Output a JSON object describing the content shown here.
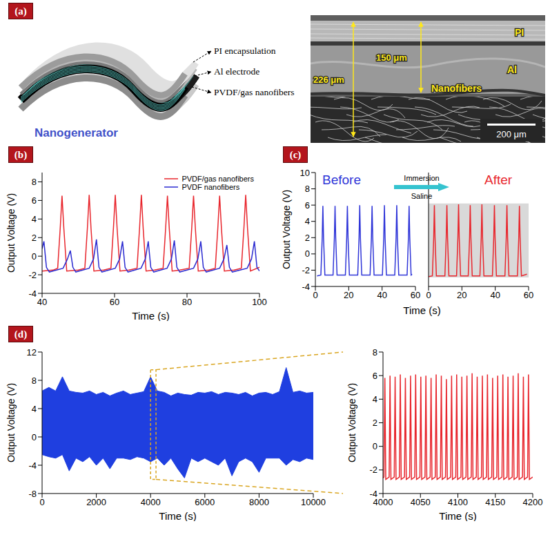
{
  "diagram": {
    "panel_label": "(a)",
    "schematic": {
      "title": "Nanogenerator",
      "labels": [
        "PI encapsulation",
        "Al electrode",
        "PVDF/gas nanofibers"
      ]
    },
    "sem": {
      "layer_labels": [
        "PI",
        "Al",
        "Nanofibers"
      ],
      "dimensions": [
        "226 μm",
        "150 μm"
      ],
      "scale_bar": "200 μm"
    }
  },
  "chart_data": [
    {
      "type": "line",
      "title": "(b)",
      "x_label": "Time (s)",
      "y_label": "Output Voltage (V)",
      "xlim": [
        40,
        100
      ],
      "xticks": [
        40,
        60,
        80,
        100
      ],
      "ylim": [
        -4,
        9
      ],
      "yticks": [
        -4,
        -2,
        0,
        2,
        4,
        6,
        8
      ],
      "legend": "upper right",
      "series": [
        {
          "name": "PVDF/gas nanofibers",
          "color": "#e8262d",
          "x": [
            40,
            43,
            44.3,
            45,
            45.5,
            46,
            46.8,
            50,
            51.8,
            52.5,
            53,
            53.5,
            54.3,
            57,
            59,
            59.7,
            60.2,
            60.7,
            61.5,
            64,
            66.2,
            66.9,
            67.4,
            67.9,
            68.7,
            71,
            73.4,
            74.1,
            74.6,
            75.1,
            75.9,
            78,
            80.6,
            81.3,
            81.8,
            82.3,
            83.1,
            86,
            87.8,
            88.5,
            89,
            89.5,
            90.3,
            93,
            95,
            95.7,
            96.2,
            96.7,
            97.5,
            100
          ],
          "values": [
            -1.6,
            -1.5,
            -1.3,
            3.0,
            6.5,
            3.0,
            -1.6,
            -1.5,
            -1.3,
            3.0,
            6.6,
            3.0,
            -1.6,
            -1.5,
            -1.3,
            3.1,
            6.6,
            3.0,
            -1.6,
            -1.5,
            -1.3,
            3.0,
            6.6,
            3.0,
            -1.6,
            -1.5,
            -1.3,
            3.0,
            6.5,
            3.0,
            -1.6,
            -1.5,
            -1.3,
            3.0,
            6.5,
            3.0,
            -1.6,
            -1.5,
            -1.3,
            3.0,
            6.5,
            3.0,
            -1.6,
            -1.5,
            -1.3,
            3.0,
            6.6,
            3.0,
            -1.6,
            -1.2
          ]
        },
        {
          "name": "PVDF nanofibers",
          "color": "#2b2bd0",
          "x": [
            40,
            40.5,
            41.2,
            42,
            45.8,
            47,
            47.8,
            48.5,
            49.3,
            53,
            54.2,
            55,
            55.7,
            56.5,
            60.2,
            61.4,
            62.2,
            62.9,
            63.7,
            67.3,
            68.5,
            69.3,
            70,
            70.8,
            74.5,
            75.7,
            76.5,
            77.2,
            78,
            81.8,
            83,
            83.8,
            84.5,
            85.3,
            89,
            90.2,
            91,
            91.7,
            92.5,
            96.6,
            97.8,
            98.6,
            99.3,
            100
          ],
          "values": [
            0.8,
            1.6,
            -1.2,
            -1.7,
            -1.3,
            -0.3,
            0.6,
            -1.2,
            -1.7,
            -1.3,
            -0.3,
            1.8,
            -1.2,
            -1.7,
            -1.3,
            -0.3,
            1.6,
            -1.2,
            -1.7,
            -1.3,
            -0.3,
            1.6,
            -1.2,
            -1.7,
            -1.3,
            -0.3,
            1.7,
            -1.2,
            -1.7,
            -1.3,
            -0.3,
            1.6,
            -1.2,
            -1.7,
            -1.3,
            -0.3,
            1.2,
            -1.2,
            -1.7,
            -1.3,
            -0.3,
            1.6,
            -1.2,
            -1.6
          ]
        }
      ]
    },
    {
      "type": "line",
      "title": "(c)",
      "x_label": "Time (s)",
      "y_label": "Output Voltage (V)",
      "xlim": [
        0,
        60
      ],
      "xticks": [
        0,
        20,
        40,
        60
      ],
      "ylim": [
        -4,
        10
      ],
      "yticks": [
        -4,
        -2,
        0,
        2,
        4,
        6,
        8,
        10
      ],
      "annotations": [
        "Immersion",
        "Saline"
      ],
      "shaded_band": [
        -2.9,
        6.2
      ],
      "series": [
        {
          "name": "Before",
          "color": "#2f35d8",
          "x": [
            1,
            3.3,
            4.1,
            4.5,
            4.9,
            5.7,
            10.6,
            11.4,
            11.8,
            12.2,
            13,
            18,
            18.8,
            19.2,
            19.6,
            20.4,
            25.4,
            26.2,
            26.6,
            27,
            27.8,
            32.8,
            33.6,
            34,
            34.4,
            35.2,
            40.2,
            41,
            41.4,
            41.8,
            42.6,
            47.6,
            48.4,
            48.8,
            49.2,
            50,
            55,
            55.8,
            56.2,
            56.6,
            57.4,
            58
          ],
          "values": [
            -2.7,
            -2.6,
            2,
            5.9,
            2,
            -2.6,
            -2.6,
            2,
            5.9,
            2,
            -2.6,
            -2.6,
            2,
            5.9,
            2,
            -2.6,
            -2.6,
            2,
            6.0,
            2,
            -2.6,
            -2.6,
            2,
            5.9,
            2,
            -2.6,
            -2.6,
            2,
            6.0,
            2,
            -2.6,
            -2.6,
            2,
            6.0,
            2,
            -2.6,
            -2.6,
            2,
            5.9,
            2,
            -2.6,
            -2.5
          ]
        },
        {
          "name": "After",
          "color": "#e8262d",
          "x": [
            0,
            2.3,
            3.1,
            3.5,
            3.9,
            4.7,
            9.8,
            10.6,
            11,
            11.4,
            12.2,
            16.8,
            17.6,
            18,
            18.4,
            19.2,
            23.8,
            24.6,
            25,
            25.4,
            26.2,
            30.8,
            31.6,
            32,
            32.4,
            33.2,
            38.3,
            39.1,
            39.5,
            39.9,
            40.7,
            45.8,
            46.6,
            47,
            47.4,
            48.2,
            53.3,
            54.1,
            54.5,
            54.9,
            55.7,
            59
          ],
          "values": [
            -2.8,
            -2.7,
            2,
            6.0,
            2,
            -2.7,
            -2.7,
            2,
            6.0,
            2,
            -2.7,
            -2.7,
            2,
            6.1,
            2,
            -2.7,
            -2.7,
            2,
            6.0,
            2,
            -2.7,
            -2.7,
            2,
            6.1,
            2,
            -2.7,
            -2.7,
            2,
            6.0,
            2,
            -2.7,
            -2.7,
            2,
            6.0,
            2,
            -2.7,
            -2.7,
            2,
            5.9,
            2,
            -2.7,
            -2.5
          ]
        }
      ]
    },
    {
      "type": "area",
      "title": "(d)",
      "x_label": "Time (s)",
      "y_label": "Output Voltage (V)",
      "xlim": [
        0,
        10000
      ],
      "xticks": [
        0,
        2000,
        4000,
        6000,
        8000,
        10000
      ],
      "ylim": [
        -8,
        12
      ],
      "yticks": [
        -8,
        -4,
        0,
        4,
        8,
        12
      ],
      "color": "#1f3fe0",
      "x": [
        0,
        250,
        500,
        750,
        1000,
        1250,
        1500,
        1750,
        2000,
        2250,
        2500,
        2750,
        3000,
        3250,
        3500,
        3750,
        4000,
        4250,
        4500,
        4750,
        5000,
        5250,
        5500,
        5750,
        6000,
        6250,
        6500,
        6750,
        7000,
        7250,
        7500,
        7750,
        8000,
        8250,
        8500,
        8750,
        9000,
        9250,
        9500,
        9750,
        10000
      ],
      "low": [
        -2.5,
        -2.8,
        -3,
        -2.5,
        -4.8,
        -3,
        -3.5,
        -2.8,
        -4,
        -3,
        -4.5,
        -3,
        -3,
        -3.2,
        -2.8,
        -3,
        -3.5,
        -3,
        -4,
        -3,
        -4.5,
        -5.8,
        -3,
        -3.5,
        -3,
        -3.5,
        -4,
        -3,
        -5.5,
        -3.5,
        -3,
        -3.5,
        -5,
        -3,
        -3,
        -3,
        -4,
        -3.2,
        -3.5,
        -3,
        -3.2
      ],
      "high": [
        6.5,
        7,
        6.5,
        8.5,
        6.5,
        6.3,
        6.2,
        6.5,
        6,
        6.3,
        5.8,
        6.2,
        6.5,
        6,
        6.2,
        6.4,
        8.5,
        6.5,
        6.3,
        5.8,
        6.2,
        6,
        5.9,
        6.3,
        6.2,
        6.4,
        6,
        6.3,
        6.2,
        6,
        6.3,
        5.8,
        6.2,
        6.3,
        6,
        6.4,
        9.8,
        6.3,
        6.5,
        6.2,
        6.3
      ],
      "zoom_box": {
        "x": [
          4000,
          4200
        ],
        "y": [
          -6,
          9.5
        ]
      }
    },
    {
      "type": "line",
      "x_label": "Time (s)",
      "y_label": "Output Voltage (V)",
      "xlim": [
        4000,
        4200
      ],
      "xticks": [
        4000,
        4050,
        4100,
        4150,
        4200
      ],
      "ylim": [
        -4,
        8
      ],
      "yticks": [
        -4,
        -2,
        0,
        2,
        4,
        6,
        8
      ],
      "color": "#e8262d",
      "x": [
        4000,
        4001.3,
        4002.5,
        4003.7,
        4008.2,
        4009.4,
        4010.6,
        4015.0,
        4016.2,
        4017.4,
        4021.9,
        4023.1,
        4024.3,
        4028.7,
        4029.9,
        4031.1,
        4035.6,
        4036.8,
        4038.0,
        4042.4,
        4043.6,
        4044.8,
        4049.3,
        4050.5,
        4051.7,
        4056.1,
        4057.3,
        4058.5,
        4063.0,
        4064.2,
        4065.4,
        4069.8,
        4071.0,
        4072.2,
        4076.7,
        4077.9,
        4079.1,
        4083.5,
        4084.7,
        4085.9,
        4090.4,
        4091.6,
        4092.8,
        4097.2,
        4098.4,
        4099.6,
        4104.1,
        4105.3,
        4106.5,
        4110.9,
        4112.1,
        4113.3,
        4117.8,
        4119.0,
        4120.2,
        4124.6,
        4125.8,
        4127.0,
        4131.5,
        4132.7,
        4133.9,
        4138.3,
        4139.5,
        4140.7,
        4145.2,
        4146.4,
        4147.6,
        4152.0,
        4153.2,
        4154.4,
        4158.9,
        4160.1,
        4161.3,
        4165.7,
        4166.9,
        4168.1,
        4172.6,
        4173.8,
        4175.0,
        4179.4,
        4180.6,
        4181.8,
        4186.3,
        4187.5,
        4188.7,
        4193.1,
        4194.3,
        4195.5,
        4200
      ],
      "values": [
        -2.7,
        -2.6,
        5.8,
        -2.8,
        -2.6,
        6.0,
        -2.8,
        -2.6,
        5.9,
        -2.8,
        -2.6,
        6.1,
        -2.8,
        -2.6,
        5.8,
        -2.8,
        -2.6,
        6.0,
        -2.8,
        -2.6,
        6.1,
        -2.8,
        -2.6,
        5.9,
        -2.8,
        -2.6,
        6.0,
        -2.8,
        -2.6,
        5.8,
        -2.8,
        -2.6,
        6.1,
        -2.8,
        -2.6,
        6.0,
        -2.8,
        -2.6,
        5.7,
        -2.8,
        -2.6,
        6.0,
        -2.8,
        -2.6,
        6.1,
        -2.8,
        -2.6,
        5.9,
        -2.8,
        -2.6,
        6.0,
        -2.8,
        -2.6,
        6.2,
        -2.8,
        -2.6,
        5.9,
        -2.8,
        -2.6,
        6.0,
        -2.8,
        -2.6,
        6.1,
        -2.8,
        -2.6,
        5.8,
        -2.8,
        -2.6,
        6.0,
        -2.8,
        -2.6,
        6.1,
        -2.8,
        -2.6,
        5.9,
        -2.8,
        -2.6,
        6.0,
        -2.8,
        -2.6,
        6.2,
        -2.8,
        -2.6,
        5.9,
        -2.8,
        -2.6,
        6.1,
        -2.8,
        -2.6
      ]
    }
  ]
}
